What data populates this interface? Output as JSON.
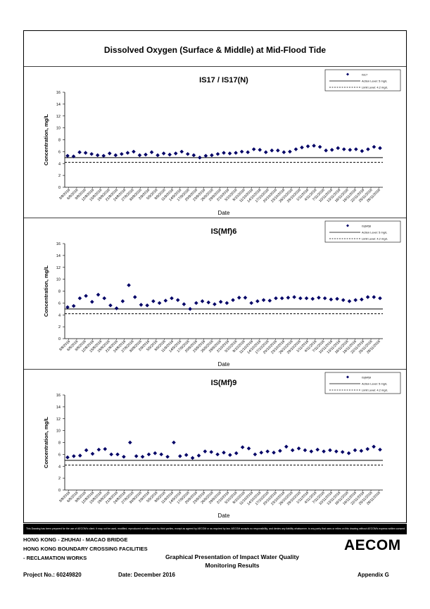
{
  "page_title": "Dissolved Oxygen (Surface & Middle) at Mid-Flood Tide",
  "footer": {
    "disclaimer": "This Drawing has been prepared for the use of AECOM's client. It may not be used, modified, reproduced or relied upon by third parties, except as agreed by AECOM or as required by law. AECOM accepts no responsibility, and denies any liability whatsoever, to any party that uses or relies on this drawing without AECOM's express written consent.",
    "line1": "HONG KONG - ZHUHAI - MACAO BRIDGE",
    "line2": "HONG KONG BOUNDARY CROSSING FACILITIES",
    "line3": "- RECLAMATION WORKS",
    "project": "Project No.: 60249820",
    "date": "Date: December 2016",
    "center_title_1": "Graphical Presentation of Impact Water Quality",
    "center_title_2": "Monitoring Results",
    "appendix": "Appendix G",
    "logo": "AECOM"
  },
  "chart_data": [
    {
      "type": "scatter",
      "title": "IS17 / IS17(N)",
      "xlabel": "Date",
      "ylabel": "Concentration, mg/L",
      "ylim": [
        0,
        16
      ],
      "yticks": [
        0,
        2,
        4,
        6,
        8,
        10,
        12,
        14,
        16
      ],
      "x_tick_labels": [
        "3/8/2016",
        "6/8/2016",
        "9/8/2016",
        "12/8/2016",
        "15/8/2016",
        "18/8/2016",
        "21/8/2016",
        "24/8/2016",
        "27/8/2016",
        "30/8/2016",
        "2/9/2016",
        "5/9/2016",
        "8/9/2016",
        "11/9/2016",
        "14/9/2016",
        "17/9/2016",
        "20/9/2016",
        "23/9/2016",
        "26/9/2016",
        "29/9/2016",
        "2/10/2016",
        "5/10/2016",
        "8/10/2016",
        "11/10/2016",
        "14/10/2016",
        "17/10/2016",
        "20/10/2016",
        "23/10/2016",
        "26/10/2016",
        "29/10/2016",
        "1/11/2016",
        "4/11/2016",
        "7/11/2016",
        "10/11/2016",
        "13/11/2016",
        "16/11/2016",
        "19/11/2016",
        "22/11/2016",
        "25/11/2016",
        "28/11/2016"
      ],
      "legend": [
        "IS17",
        "Action Level: 5 mg/L",
        "Limit Level: 4.2 mg/L"
      ],
      "legend_position": "top-right",
      "action_level": 5,
      "limit_level": 4.2,
      "series": [
        {
          "name": "IS17",
          "color": "#000066",
          "values": [
            5.3,
            5.2,
            5.9,
            5.8,
            5.6,
            5.4,
            5.3,
            5.7,
            5.4,
            5.6,
            5.8,
            6.0,
            5.4,
            5.5,
            5.9,
            5.4,
            5.7,
            5.5,
            5.7,
            6.0,
            5.6,
            5.4,
            5.0,
            5.3,
            5.4,
            5.6,
            5.8,
            5.7,
            5.8,
            6.0,
            5.9,
            6.4,
            6.3,
            5.9,
            6.2,
            6.2,
            5.9,
            6.0,
            6.4,
            6.7,
            6.9,
            7.0,
            6.8,
            6.2,
            6.3,
            6.6,
            6.4,
            6.3,
            6.4,
            6.1,
            6.4,
            6.8,
            6.6
          ]
        }
      ]
    },
    {
      "type": "scatter",
      "title": "IS(Mf)6",
      "xlabel": "Date",
      "ylabel": "Concentration, mg/L",
      "ylim": [
        0,
        16
      ],
      "yticks": [
        0,
        2,
        4,
        6,
        8,
        10,
        12,
        14,
        16
      ],
      "x_tick_labels": [
        "3/8/2016",
        "6/8/2016",
        "9/8/2016",
        "12/8/2016",
        "15/8/2016",
        "18/8/2016",
        "21/8/2016",
        "24/8/2016",
        "27/8/2016",
        "30/8/2016",
        "2/9/2016",
        "5/9/2016",
        "8/9/2016",
        "11/9/2016",
        "14/9/2016",
        "17/9/2016",
        "20/9/2016",
        "23/9/2016",
        "26/9/2016",
        "29/9/2016",
        "2/10/2016",
        "5/10/2016",
        "8/10/2016",
        "11/10/2016",
        "14/10/2016",
        "17/10/2016",
        "20/10/2016",
        "23/10/2016",
        "26/10/2016",
        "29/10/2016",
        "1/11/2016",
        "4/11/2016",
        "7/11/2016",
        "10/11/2016",
        "13/11/2016",
        "16/11/2016",
        "19/11/2016",
        "22/11/2016",
        "25/11/2016",
        "28/11/2016"
      ],
      "legend": [
        "IS(Mf)6",
        "Action Level: 5 mg/L",
        "Limit Level: 4.2 mg/L"
      ],
      "legend_position": "top-right",
      "action_level": 5,
      "limit_level": 4.2,
      "series": [
        {
          "name": "IS(Mf)6",
          "color": "#000066",
          "values": [
            5.3,
            5.5,
            6.8,
            7.2,
            6.2,
            7.4,
            6.8,
            5.6,
            5.1,
            6.3,
            9.0,
            7.0,
            5.7,
            5.6,
            6.3,
            6.0,
            6.4,
            6.8,
            6.5,
            5.8,
            5.0,
            6.0,
            6.3,
            6.1,
            5.8,
            6.2,
            6.0,
            6.5,
            6.9,
            6.9,
            6.0,
            6.3,
            6.5,
            6.4,
            6.8,
            6.8,
            6.9,
            7.0,
            6.8,
            6.8,
            6.7,
            6.9,
            6.8,
            6.6,
            6.7,
            6.5,
            6.3,
            6.5,
            6.6,
            7.0,
            7.0,
            6.8
          ]
        }
      ]
    },
    {
      "type": "scatter",
      "title": "IS(Mf)9",
      "xlabel": "Date",
      "ylabel": "Concentration, mg/L",
      "ylim": [
        0,
        16
      ],
      "yticks": [
        0,
        2,
        4,
        6,
        8,
        10,
        12,
        14,
        16
      ],
      "x_tick_labels": [
        "3/8/2016",
        "6/8/2016",
        "9/8/2016",
        "12/8/2016",
        "15/8/2016",
        "18/8/2016",
        "21/8/2016",
        "24/8/2016",
        "27/8/2016",
        "30/8/2016",
        "2/9/2016",
        "5/9/2016",
        "8/9/2016",
        "11/9/2016",
        "14/9/2016",
        "17/9/2016",
        "20/9/2016",
        "23/9/2016",
        "26/9/2016",
        "29/9/2016",
        "2/10/2016",
        "5/10/2016",
        "8/10/2016",
        "11/10/2016",
        "14/10/2016",
        "17/10/2016",
        "20/10/2016",
        "23/10/2016",
        "26/10/2016",
        "29/10/2016",
        "1/11/2016",
        "4/11/2016",
        "7/11/2016",
        "10/11/2016",
        "13/11/2016",
        "16/11/2016",
        "19/11/2016",
        "22/11/2016",
        "25/11/2016",
        "28/11/2016"
      ],
      "legend": [
        "IS(Mf)9",
        "Action Level: 5 mg/L",
        "Limit Level: 4.2 mg/L"
      ],
      "legend_position": "top-right",
      "action_level": 5,
      "limit_level": 4.2,
      "series": [
        {
          "name": "IS(Mf)9",
          "color": "#000066",
          "values": [
            5.5,
            5.7,
            5.8,
            6.7,
            6.1,
            6.8,
            6.9,
            6.0,
            6.0,
            5.6,
            8.0,
            5.7,
            5.6,
            6.0,
            6.2,
            6.0,
            5.6,
            8.0,
            5.7,
            5.9,
            5.4,
            5.8,
            6.5,
            6.4,
            6.0,
            6.3,
            5.9,
            6.2,
            7.2,
            7.0,
            6.0,
            6.3,
            6.5,
            6.3,
            6.6,
            7.3,
            6.7,
            7.0,
            6.7,
            6.5,
            6.8,
            6.5,
            6.7,
            6.5,
            6.4,
            6.2,
            6.7,
            6.6,
            6.9,
            7.3,
            6.8
          ]
        }
      ]
    }
  ]
}
